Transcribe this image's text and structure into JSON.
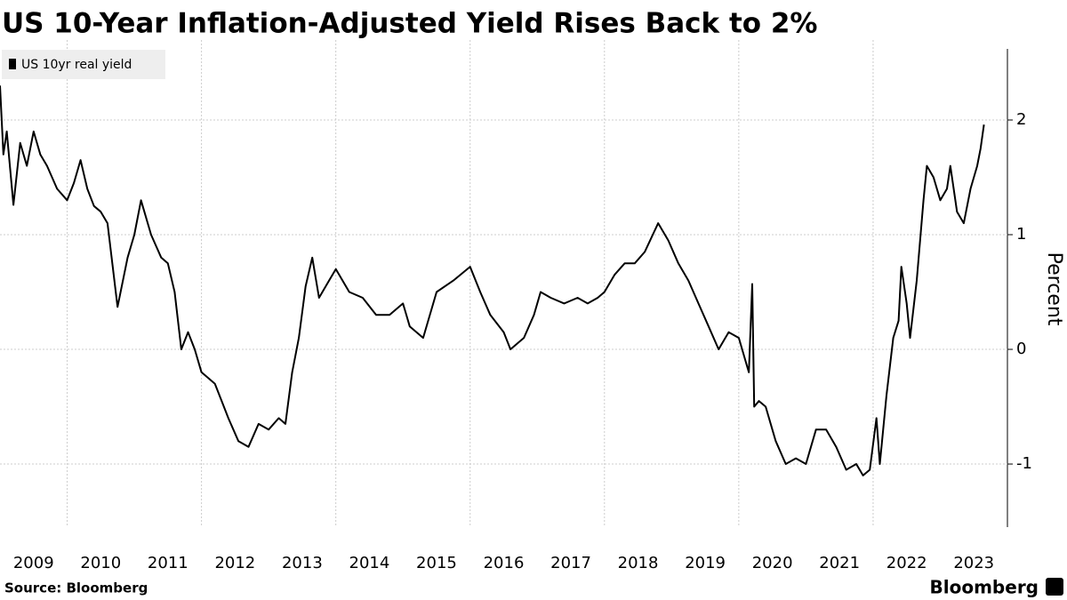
{
  "chart_data": {
    "type": "line",
    "title": "US 10-Year Inflation-Adjusted Yield Rises Back to 2%",
    "y_axis_label": "Percent",
    "source": "Source: Bloomberg",
    "brand": "Bloomberg",
    "x": [
      2009.0,
      2009.05,
      2009.1,
      2009.2,
      2009.3,
      2009.4,
      2009.5,
      2009.6,
      2009.7,
      2009.85,
      2010.0,
      2010.1,
      2010.2,
      2010.3,
      2010.4,
      2010.5,
      2010.6,
      2010.75,
      2010.9,
      2011.0,
      2011.1,
      2011.25,
      2011.4,
      2011.5,
      2011.6,
      2011.7,
      2011.8,
      2011.9,
      2012.0,
      2012.1,
      2012.2,
      2012.3,
      2012.4,
      2012.55,
      2012.7,
      2012.85,
      2013.0,
      2013.15,
      2013.25,
      2013.35,
      2013.45,
      2013.55,
      2013.65,
      2013.75,
      2013.9,
      2014.0,
      2014.2,
      2014.4,
      2014.6,
      2014.8,
      2015.0,
      2015.1,
      2015.3,
      2015.5,
      2015.75,
      2016.0,
      2016.15,
      2016.3,
      2016.5,
      2016.6,
      2016.8,
      2016.95,
      2017.05,
      2017.2,
      2017.4,
      2017.6,
      2017.75,
      2017.9,
      2018.0,
      2018.15,
      2018.3,
      2018.45,
      2018.6,
      2018.8,
      2018.95,
      2019.1,
      2019.25,
      2019.4,
      2019.55,
      2019.7,
      2019.85,
      2020.0,
      2020.1,
      2020.15,
      2020.2,
      2020.23,
      2020.3,
      2020.4,
      2020.55,
      2020.7,
      2020.85,
      2021.0,
      2021.15,
      2021.3,
      2021.45,
      2021.6,
      2021.75,
      2021.85,
      2021.95,
      2022.05,
      2022.1,
      2022.2,
      2022.3,
      2022.38,
      2022.42,
      2022.5,
      2022.55,
      2022.65,
      2022.75,
      2022.8,
      2022.9,
      2023.0,
      2023.1,
      2023.15,
      2023.25,
      2023.35,
      2023.45,
      2023.55,
      2023.6,
      2023.65
    ],
    "series": [
      {
        "name": "US 10yr real yield",
        "color": "#000000",
        "values": [
          2.3,
          1.7,
          1.9,
          1.26,
          1.8,
          1.6,
          1.9,
          1.7,
          1.6,
          1.4,
          1.3,
          1.45,
          1.65,
          1.4,
          1.25,
          1.2,
          1.1,
          0.37,
          0.8,
          1.0,
          1.3,
          1.0,
          0.8,
          0.75,
          0.5,
          0.0,
          0.15,
          0.0,
          -0.2,
          -0.25,
          -0.3,
          -0.45,
          -0.6,
          -0.8,
          -0.85,
          -0.65,
          -0.7,
          -0.6,
          -0.65,
          -0.2,
          0.1,
          0.55,
          0.8,
          0.45,
          0.6,
          0.7,
          0.5,
          0.45,
          0.3,
          0.3,
          0.4,
          0.2,
          0.1,
          0.5,
          0.6,
          0.72,
          0.5,
          0.3,
          0.15,
          0.0,
          0.1,
          0.3,
          0.5,
          0.45,
          0.4,
          0.45,
          0.4,
          0.45,
          0.5,
          0.65,
          0.75,
          0.75,
          0.85,
          1.1,
          0.95,
          0.75,
          0.6,
          0.4,
          0.2,
          0.0,
          0.15,
          0.1,
          -0.1,
          -0.2,
          0.57,
          -0.5,
          -0.45,
          -0.5,
          -0.8,
          -1.0,
          -0.95,
          -1.0,
          -0.7,
          -0.7,
          -0.85,
          -1.05,
          -1.0,
          -1.1,
          -1.05,
          -0.6,
          -1.0,
          -0.4,
          0.1,
          0.25,
          0.72,
          0.4,
          0.1,
          0.6,
          1.3,
          1.6,
          1.5,
          1.3,
          1.4,
          1.6,
          1.2,
          1.1,
          1.4,
          1.6,
          1.75,
          1.96
        ]
      }
    ],
    "xlim": [
      2009,
      2024
    ],
    "xticks": [
      {
        "value": 2009.5,
        "label": "2009"
      },
      {
        "value": 2010.5,
        "label": "2010"
      },
      {
        "value": 2011.5,
        "label": "2011"
      },
      {
        "value": 2012.5,
        "label": "2012"
      },
      {
        "value": 2013.5,
        "label": "2013"
      },
      {
        "value": 2014.5,
        "label": "2014"
      },
      {
        "value": 2015.5,
        "label": "2015"
      },
      {
        "value": 2016.5,
        "label": "2016"
      },
      {
        "value": 2017.5,
        "label": "2017"
      },
      {
        "value": 2018.5,
        "label": "2018"
      },
      {
        "value": 2019.5,
        "label": "2019"
      },
      {
        "value": 2020.5,
        "label": "2020"
      },
      {
        "value": 2021.5,
        "label": "2021"
      },
      {
        "value": 2022.5,
        "label": "2022"
      },
      {
        "value": 2023.5,
        "label": "2023"
      }
    ],
    "xgrid": [
      2010,
      2012,
      2014,
      2016,
      2018,
      2020,
      2022
    ],
    "ylim": [
      -1.55,
      2.62
    ],
    "yticks": [
      -1,
      0,
      1,
      2
    ],
    "grid": true,
    "legend": "top-left"
  }
}
